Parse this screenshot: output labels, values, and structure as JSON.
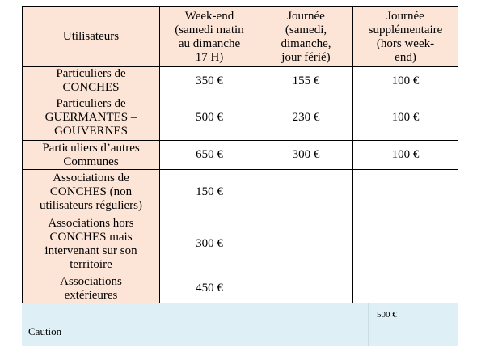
{
  "table": {
    "header": [
      [
        "Utilisateurs"
      ],
      [
        "Week-end",
        "(samedi matin",
        "au dimanche",
        "17 H)"
      ],
      [
        "Journée",
        "(samedi,",
        "dimanche,",
        "jour férié)"
      ],
      [
        "Journée",
        "supplémentaire",
        "(hors week-",
        "end)"
      ]
    ],
    "rows": [
      [
        [
          "Particuliers de",
          "CONCHES"
        ],
        [
          "350 €"
        ],
        [
          "155 €"
        ],
        [
          "100 €"
        ]
      ],
      [
        [
          "Particuliers de",
          "GUERMANTES –",
          "GOUVERNES"
        ],
        [
          "500 €"
        ],
        [
          "230 €"
        ],
        [
          "100 €"
        ]
      ],
      [
        [
          "Particuliers d’autres",
          "Communes"
        ],
        [
          "650 €"
        ],
        [
          "300 €"
        ],
        [
          "100 €"
        ]
      ],
      [
        [
          "Associations de",
          "CONCHES (non",
          "utilisateurs réguliers)"
        ],
        [
          "150 €"
        ]
      ],
      [
        [
          "Associations hors",
          "CONCHES mais",
          "intervenant sur son",
          "territoire"
        ],
        [
          "300 €"
        ]
      ],
      [
        [
          "Associations",
          "extérieures"
        ],
        [
          "450 €"
        ]
      ]
    ],
    "caution": {
      "label": "Caution",
      "value": "500 €"
    }
  }
}
